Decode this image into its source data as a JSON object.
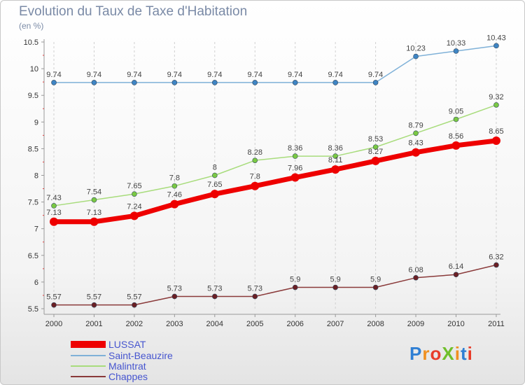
{
  "title": "Evolution du Taux de Taxe d'Habitation",
  "subtitle": "(en %)",
  "logo": {
    "text": "ProXiti",
    "letter_colors": [
      "#2f7fd4",
      "#f09020",
      "#e83c2a",
      "#6fbf2a",
      "#f09020",
      "#2f7fd4",
      "#e83c2a"
    ]
  },
  "chart_data": {
    "type": "line",
    "x": [
      "2000",
      "2001",
      "2002",
      "2003",
      "2004",
      "2005",
      "2006",
      "2007",
      "2008",
      "2009",
      "2010",
      "2011"
    ],
    "ylim": [
      5.5,
      10.5
    ],
    "yticks": [
      "5.5",
      "6",
      "6.5",
      "7",
      "7.5",
      "8",
      "8.5",
      "9",
      "9.5",
      "10",
      "10.5"
    ],
    "grid": "vertical dashed",
    "legend": "bottom-left",
    "series": [
      {
        "name": "Saint-Beauzire",
        "color": "#7fb1d8",
        "marker_color": "#3f85c4",
        "values": [
          9.74,
          9.74,
          9.74,
          9.74,
          9.74,
          9.74,
          9.74,
          9.74,
          9.74,
          10.23,
          10.33,
          10.43
        ],
        "labels": [
          "9.74",
          "9.74",
          "9.74",
          "9.74",
          "9.74",
          "9.74",
          "9.74",
          "9.74",
          "9.74",
          "10.23",
          "10.33",
          "10.43"
        ]
      },
      {
        "name": "Malintrat",
        "color": "#a8dc7c",
        "marker_color": "#7ac943",
        "values": [
          7.43,
          7.54,
          7.65,
          7.8,
          8,
          8.28,
          8.36,
          8.36,
          8.53,
          8.79,
          9.05,
          9.32
        ],
        "labels": [
          "7.43",
          "7.54",
          "7.65",
          "7.8",
          "8",
          "8.28",
          "8.36",
          "8.36",
          "8.53",
          "8.79",
          "9.05",
          "9.32"
        ]
      },
      {
        "name": "LUSSAT",
        "color": "#ee0000",
        "marker_color": "#ee0000",
        "values": [
          7.13,
          7.13,
          7.24,
          7.46,
          7.65,
          7.8,
          7.96,
          8.11,
          8.27,
          8.43,
          8.56,
          8.65
        ],
        "labels": [
          "7.13",
          "7.13",
          "7.24",
          "7.46",
          "7.65",
          "7.8",
          "7.96",
          "8.11",
          "8.27",
          "8.43",
          "8.56",
          "8.65"
        ]
      },
      {
        "name": "Chappes",
        "color": "#8a3a3a",
        "marker_color": "#6b1f24",
        "values": [
          5.57,
          5.57,
          5.57,
          5.73,
          5.73,
          5.73,
          5.9,
          5.9,
          5.9,
          6.08,
          6.14,
          6.32
        ],
        "labels": [
          "5.57",
          "5.57",
          "5.57",
          "5.73",
          "5.73",
          "5.73",
          "5.9",
          "5.9",
          "5.9",
          "6.08",
          "6.14",
          "6.32"
        ]
      }
    ],
    "legend_entries": [
      {
        "name": "LUSSAT",
        "color": "#ee0000"
      },
      {
        "name": "Saint-Beauzire",
        "color": "#7fb1d8"
      },
      {
        "name": "Malintrat",
        "color": "#a8dc7c"
      },
      {
        "name": "Chappes",
        "color": "#8a3a3a"
      }
    ]
  }
}
